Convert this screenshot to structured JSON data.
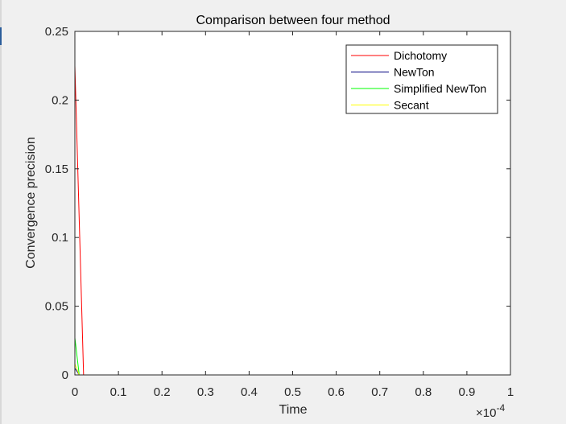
{
  "chart_data": {
    "type": "line",
    "title": "Comparison between four method",
    "xlabel": "Time",
    "ylabel": "Convergence precision",
    "x_exponent_label": "×10",
    "x_exponent_power": "-4",
    "xlim": [
      0,
      1
    ],
    "ylim": [
      0,
      0.25
    ],
    "xticks": [
      0,
      0.1,
      0.2,
      0.3,
      0.4,
      0.5,
      0.6,
      0.7,
      0.8,
      0.9,
      1
    ],
    "xtick_labels": [
      "0",
      "0.1",
      "0.2",
      "0.3",
      "0.4",
      "0.5",
      "0.6",
      "0.7",
      "0.8",
      "0.9",
      "1"
    ],
    "yticks": [
      0,
      0.05,
      0.1,
      0.15,
      0.2,
      0.25
    ],
    "ytick_labels": [
      "0",
      "0.05",
      "0.1",
      "0.15",
      "0.2",
      "0.25"
    ],
    "grid": false,
    "legend_position": "top-right",
    "series": [
      {
        "name": "Dichotomy",
        "color": "#ff0000",
        "x": [
          0,
          0.02,
          0.05,
          0.1,
          0.2,
          0.3,
          0.4,
          0.5,
          0.6,
          0.7,
          0.8,
          0.9,
          1
        ],
        "y": [
          0.225,
          0,
          0,
          0,
          0,
          0,
          0,
          0,
          0,
          0,
          0,
          0,
          0
        ]
      },
      {
        "name": "NewTon",
        "color": "#00007f",
        "x": [
          0,
          0.01,
          0.1,
          0.2,
          0.3,
          0.4,
          0.5,
          0.6,
          0.7,
          0.8,
          0.9,
          1
        ],
        "y": [
          0.005,
          0,
          0,
          0,
          0,
          0,
          0,
          0,
          0,
          0,
          0,
          0
        ]
      },
      {
        "name": "Simplified NewTon",
        "color": "#00ff00",
        "x": [
          0,
          0.01,
          0.1,
          0.2,
          0.3,
          0.4,
          0.5,
          0.6,
          0.7,
          0.8,
          0.9,
          1
        ],
        "y": [
          0.027,
          0,
          0,
          0,
          0,
          0,
          0,
          0,
          0,
          0,
          0,
          0
        ]
      },
      {
        "name": "Secant",
        "color": "#ffff00",
        "x": [
          0,
          0.01,
          0.1,
          0.2,
          0.3,
          0.4,
          0.5,
          0.6,
          0.7,
          0.8,
          0.9,
          1
        ],
        "y": [
          0.008,
          0,
          0,
          0,
          0,
          0,
          0,
          0,
          0,
          0,
          0,
          0
        ]
      }
    ]
  }
}
